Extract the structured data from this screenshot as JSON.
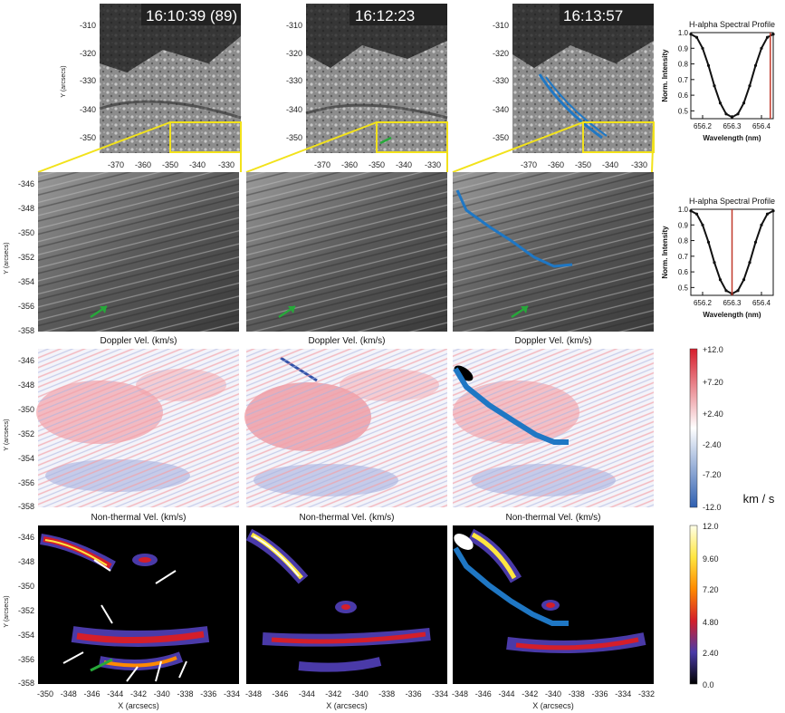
{
  "timestamps": [
    "16:10:39 (89)",
    "16:12:23",
    "16:13:57"
  ],
  "top_panels": {
    "x_ticks": [
      "-370",
      "-360",
      "-350",
      "-340",
      "-330"
    ],
    "y_ticks": [
      "-310",
      "-320",
      "-330",
      "-340",
      "-350"
    ],
    "y_label": "Y (arcsecs)"
  },
  "zoom_panels": {
    "y_ticks": [
      "-346",
      "-348",
      "-350",
      "-352",
      "-354",
      "-356",
      "-358"
    ],
    "y_label": "Y (arcsecs)"
  },
  "row_titles": {
    "doppler": "Doppler Vel. (km/s)",
    "nonthermal": "Non-thermal Vel. (km/s)"
  },
  "bottom_x_ticks": [
    [
      "-350",
      "-348",
      "-346",
      "-344",
      "-342",
      "-340",
      "-338",
      "-336",
      "-334"
    ],
    [
      "-348",
      "-346",
      "-344",
      "-342",
      "-340",
      "-338",
      "-336",
      "-334"
    ],
    [
      "-348",
      "-346",
      "-344",
      "-342",
      "-340",
      "-338",
      "-336",
      "-334",
      "-332"
    ]
  ],
  "bottom_x_label": "X (arcsecs)",
  "doppler_colorbar": {
    "ticks": [
      "+12.0",
      "+7.20",
      "+2.40",
      "-2.40",
      "-7.20",
      "-12.0"
    ],
    "colors": {
      "top": "#d61e2c",
      "mid": "#ffffff",
      "bottom": "#2f5fb0"
    }
  },
  "nonthermal_colorbar": {
    "ticks": [
      "12.0",
      "9.60",
      "7.20",
      "4.80",
      "2.40",
      "0.0"
    ],
    "unit": "km / s"
  },
  "colors": {
    "loop": "#1f77c4",
    "arrow_green": "#27a83a",
    "arrow_white": "#ffffff",
    "highlight": "#f2e21b",
    "line_red": "#c0392b"
  },
  "chart_data": [
    {
      "type": "line",
      "title": "H-alpha Spectral Profile",
      "xlabel": "Wavelength (nm)",
      "ylabel": "Norm. Intensity",
      "x_ticks": [
        "656.2",
        "656.3",
        "656.4"
      ],
      "y_ticks": [
        "1.0",
        "0.9",
        "0.8",
        "0.7",
        "0.6",
        "0.5"
      ],
      "xlim": [
        656.16,
        656.44
      ],
      "ylim": [
        0.45,
        1.0
      ],
      "x": [
        656.16,
        656.18,
        656.2,
        656.22,
        656.24,
        656.26,
        656.28,
        656.3,
        656.32,
        656.34,
        656.36,
        656.38,
        656.4,
        656.42,
        656.44
      ],
      "y": [
        0.99,
        0.97,
        0.9,
        0.79,
        0.66,
        0.55,
        0.48,
        0.46,
        0.48,
        0.55,
        0.66,
        0.79,
        0.9,
        0.97,
        0.99
      ],
      "marker_wavelength": 656.43
    },
    {
      "type": "line",
      "title": "H-alpha Spectral Profile",
      "xlabel": "Wavelength (nm)",
      "ylabel": "Norm. Intensity",
      "x_ticks": [
        "656.2",
        "656.3",
        "656.4"
      ],
      "y_ticks": [
        "1.0",
        "0.9",
        "0.8",
        "0.7",
        "0.6",
        "0.5"
      ],
      "xlim": [
        656.16,
        656.44
      ],
      "ylim": [
        0.45,
        1.0
      ],
      "x": [
        656.16,
        656.18,
        656.2,
        656.22,
        656.24,
        656.26,
        656.28,
        656.3,
        656.32,
        656.34,
        656.36,
        656.38,
        656.4,
        656.42,
        656.44
      ],
      "y": [
        0.99,
        0.97,
        0.9,
        0.79,
        0.66,
        0.55,
        0.48,
        0.46,
        0.48,
        0.55,
        0.66,
        0.79,
        0.9,
        0.97,
        0.99
      ],
      "marker_wavelength": 656.3
    }
  ]
}
